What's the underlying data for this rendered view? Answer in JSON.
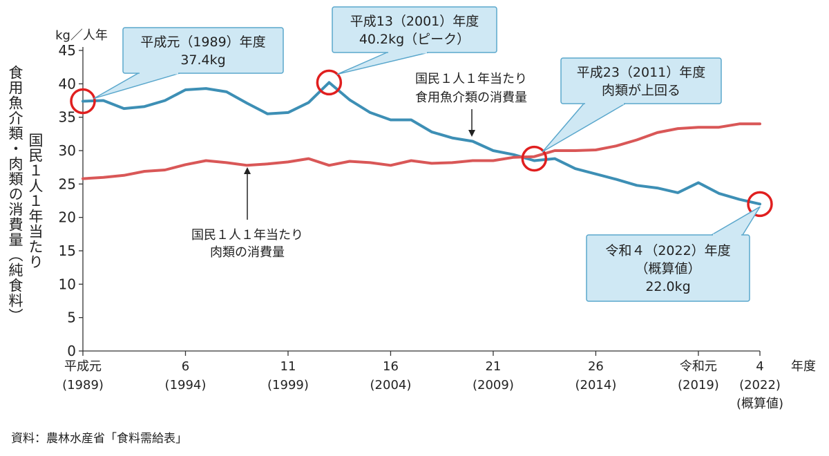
{
  "chart_data": {
    "type": "line",
    "yunit": "kg／人年",
    "ylabel_outer": "食用魚介類・肉類の消費量（純食料）",
    "ylabel_inner": "国民１人１年当たり",
    "xunit": "年度",
    "ylim": [
      0,
      45
    ],
    "yticks": [
      0,
      5,
      10,
      15,
      20,
      25,
      30,
      35,
      40,
      45
    ],
    "xlim": [
      1989,
      2022
    ],
    "xticks": [
      {
        "x": 1989,
        "line1": "平成元",
        "line2": "(1989)",
        "line3": ""
      },
      {
        "x": 1994,
        "line1": "6",
        "line2": "(1994)",
        "line3": ""
      },
      {
        "x": 1999,
        "line1": "11",
        "line2": "(1999)",
        "line3": ""
      },
      {
        "x": 2004,
        "line1": "16",
        "line2": "(2004)",
        "line3": ""
      },
      {
        "x": 2009,
        "line1": "21",
        "line2": "(2009)",
        "line3": ""
      },
      {
        "x": 2014,
        "line1": "26",
        "line2": "(2014)",
        "line3": ""
      },
      {
        "x": 2019,
        "line1": "令和元",
        "line2": "(2019)",
        "line3": ""
      },
      {
        "x": 2022,
        "line1": "4",
        "line2": "(2022)",
        "line3": "(概算値)"
      }
    ],
    "x": [
      1989,
      1990,
      1991,
      1992,
      1993,
      1994,
      1995,
      1996,
      1997,
      1998,
      1999,
      2000,
      2001,
      2002,
      2003,
      2004,
      2005,
      2006,
      2007,
      2008,
      2009,
      2010,
      2011,
      2012,
      2013,
      2014,
      2015,
      2016,
      2017,
      2018,
      2019,
      2020,
      2021,
      2022
    ],
    "series": [
      {
        "name": "fish",
        "color": "#3d8fb5",
        "values": [
          37.4,
          37.5,
          36.3,
          36.6,
          37.5,
          39.1,
          39.3,
          38.8,
          37.1,
          35.5,
          35.7,
          37.2,
          40.2,
          37.6,
          35.7,
          34.6,
          34.6,
          32.8,
          31.9,
          31.4,
          30.0,
          29.4,
          28.5,
          28.8,
          27.3,
          26.5,
          25.7,
          24.8,
          24.4,
          23.7,
          25.2,
          23.6,
          22.7,
          22.0
        ]
      },
      {
        "name": "meat",
        "color": "#d95757",
        "values": [
          25.8,
          26.0,
          26.3,
          26.9,
          27.1,
          27.9,
          28.5,
          28.2,
          27.8,
          28.0,
          28.3,
          28.8,
          27.8,
          28.4,
          28.2,
          27.8,
          28.5,
          28.1,
          28.2,
          28.5,
          28.5,
          29.0,
          29.1,
          30.0,
          30.0,
          30.1,
          30.7,
          31.6,
          32.7,
          33.3,
          33.5,
          33.5,
          34.0,
          34.0
        ]
      }
    ],
    "annotations": [
      {
        "text": "国民１人１年当たり\n食用魚介類の消費量"
      },
      {
        "text": "国民１人１年当たり\n肉類の消費量"
      }
    ],
    "callouts": [
      {
        "text": "平成元（1989）年度\n37.4kg"
      },
      {
        "text": "平成13（2001）年度\n40.2kg（ピーク）"
      },
      {
        "text": "平成23（2011）年度\n肉類が上回る"
      },
      {
        "text": "令和４（2022）年度\n（概算値）\n22.0kg"
      }
    ],
    "source": "資料：農林水産省「食料需給表」"
  }
}
